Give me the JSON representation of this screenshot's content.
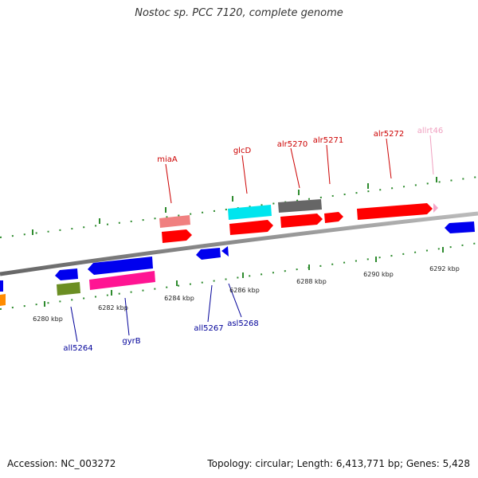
{
  "title": "Nostoc sp. PCC 7120, complete genome",
  "footer": {
    "accession": "Accession: NC_003272",
    "stats": "Topology: circular; Length: 6,413,771 bp; Genes: 5,428"
  },
  "colors": {
    "backbone": "#888888",
    "tick": "#2e8b2e",
    "forward_label": "#cc0000",
    "reverse_label": "#000099",
    "rna_label": "#f0a0c0"
  },
  "kbp_labels": [
    "6280 kbp",
    "6282 kbp",
    "6284 kbp",
    "6286 kbp",
    "6288 kbp",
    "6290 kbp",
    "6292 kbp"
  ],
  "forward_genes": [
    {
      "label": "miaA",
      "color": "#f08080"
    },
    {
      "label": "glcD",
      "color": "#00e5ee"
    },
    {
      "label": "alr5270",
      "color": "#666666"
    },
    {
      "label": "alr5271",
      "color": "#ff0000"
    },
    {
      "label": "alr5272",
      "color": "#ff0000"
    },
    {
      "label": "allrt46",
      "color": "#f4a6c8"
    }
  ],
  "reverse_genes": [
    {
      "label": "all5264",
      "color": "#0000ee"
    },
    {
      "label": "gyrB",
      "color": "#0000ee"
    },
    {
      "label": "all5267",
      "color": "#0000ee"
    },
    {
      "label": "asl5268",
      "color": "#0000ee"
    }
  ]
}
